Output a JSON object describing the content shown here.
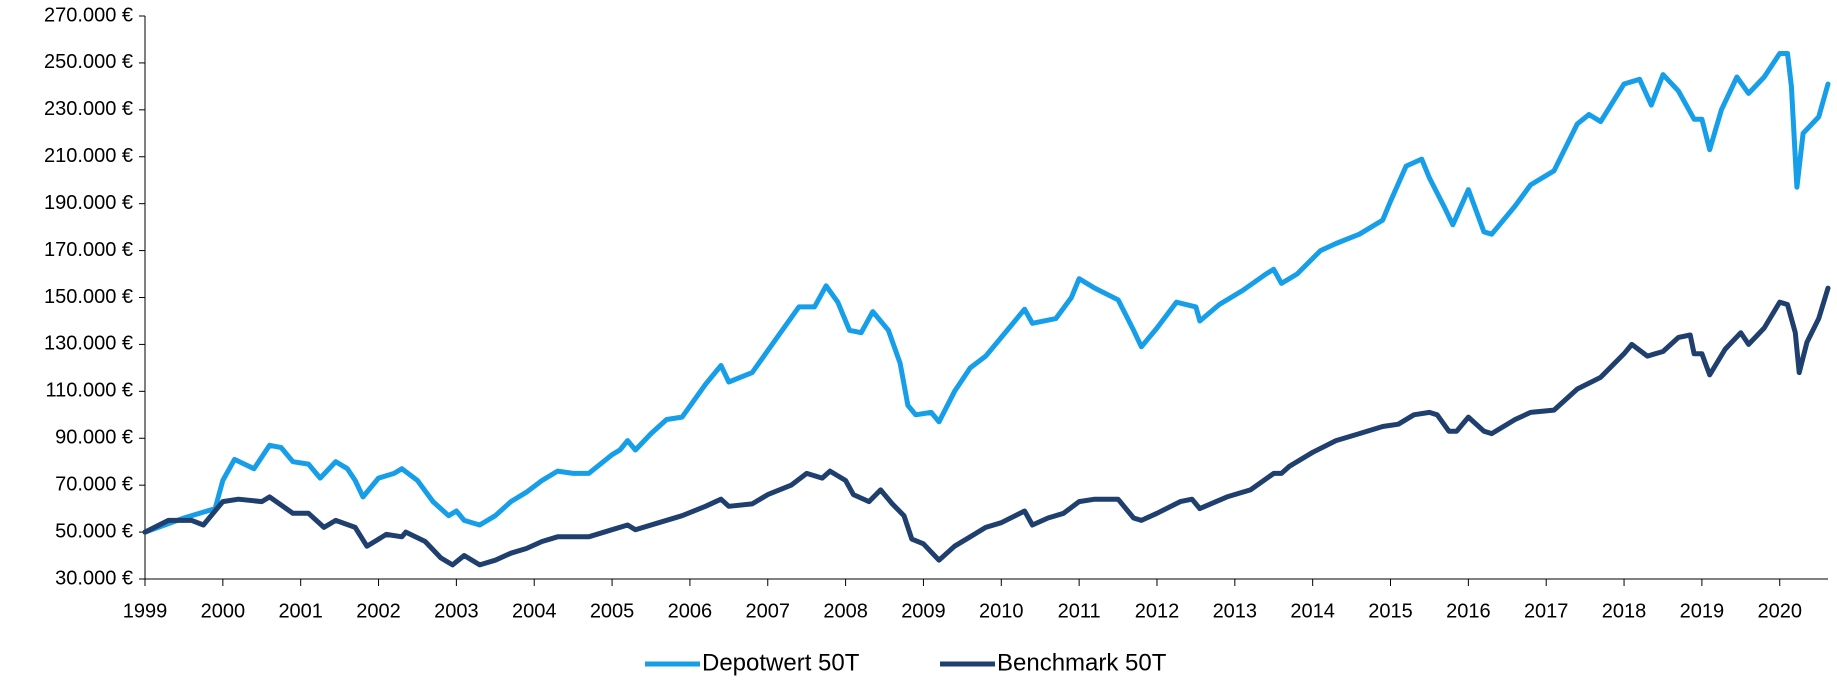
{
  "chart_data": {
    "type": "line",
    "xlim": [
      1999,
      2020.62
    ],
    "xticks": [
      1999,
      2000,
      2001,
      2002,
      2003,
      2004,
      2005,
      2006,
      2007,
      2008,
      2009,
      2010,
      2011,
      2012,
      2013,
      2014,
      2015,
      2016,
      2017,
      2018,
      2019,
      2020
    ],
    "ylim": [
      30000,
      270000
    ],
    "yticks": [
      {
        "value": 30000,
        "label": "30.000 €"
      },
      {
        "value": 50000,
        "label": "50.000 €"
      },
      {
        "value": 70000,
        "label": "70.000 €"
      },
      {
        "value": 90000,
        "label": "90.000 €"
      },
      {
        "value": 110000,
        "label": "110.000 €"
      },
      {
        "value": 130000,
        "label": "130.000 €"
      },
      {
        "value": 150000,
        "label": "150.000 €"
      },
      {
        "value": 170000,
        "label": "170.000 €"
      },
      {
        "value": 190000,
        "label": "190.000 €"
      },
      {
        "value": 210000,
        "label": "210.000 €"
      },
      {
        "value": 230000,
        "label": "230.000 €"
      },
      {
        "value": 250000,
        "label": "250.000 €"
      },
      {
        "value": 270000,
        "label": "270.000 €"
      }
    ],
    "grid": false,
    "legend": "bottom",
    "series": [
      {
        "name": "Depotwert 50T",
        "color": "#179ee9",
        "x": [
          1999.0,
          1999.5,
          1999.9,
          2000.0,
          2000.15,
          2000.4,
          2000.6,
          2000.75,
          2000.9,
          2001.1,
          2001.25,
          2001.45,
          2001.6,
          2001.7,
          2001.8,
          2002.0,
          2002.2,
          2002.3,
          2002.5,
          2002.7,
          2002.9,
          2003.0,
          2003.1,
          2003.3,
          2003.5,
          2003.7,
          2003.9,
          2004.1,
          2004.3,
          2004.5,
          2004.7,
          2005.0,
          2005.1,
          2005.2,
          2005.3,
          2005.5,
          2005.7,
          2005.9,
          2006.2,
          2006.4,
          2006.5,
          2006.8,
          2007.1,
          2007.4,
          2007.6,
          2007.75,
          2007.9,
          2008.05,
          2008.2,
          2008.35,
          2008.55,
          2008.7,
          2008.8,
          2008.9,
          2009.1,
          2009.2,
          2009.4,
          2009.6,
          2009.8,
          2010.0,
          2010.3,
          2010.4,
          2010.7,
          2010.9,
          2011.0,
          2011.2,
          2011.5,
          2011.7,
          2011.8,
          2012.0,
          2012.25,
          2012.5,
          2012.55,
          2012.8,
          2013.1,
          2013.4,
          2013.5,
          2013.6,
          2013.8,
          2014.1,
          2014.3,
          2014.6,
          2014.9,
          2015.0,
          2015.2,
          2015.4,
          2015.5,
          2015.7,
          2015.8,
          2016.0,
          2016.2,
          2016.3,
          2016.6,
          2016.8,
          2017.1,
          2017.4,
          2017.55,
          2017.7,
          2018.0,
          2018.2,
          2018.35,
          2018.5,
          2018.7,
          2018.9,
          2019.0,
          2019.1,
          2019.25,
          2019.45,
          2019.6,
          2019.8,
          2020.0,
          2020.1,
          2020.15,
          2020.22,
          2020.3,
          2020.5,
          2020.62
        ],
        "values": [
          50000,
          56000,
          60000,
          72000,
          81000,
          77000,
          87000,
          86000,
          80000,
          79000,
          73000,
          80000,
          77000,
          72000,
          65000,
          73000,
          75000,
          77000,
          72000,
          63000,
          57000,
          59000,
          55000,
          53000,
          57000,
          63000,
          67000,
          72000,
          76000,
          75000,
          75000,
          83000,
          85000,
          89000,
          85000,
          92000,
          98000,
          99000,
          113000,
          121000,
          114000,
          118000,
          132000,
          146000,
          146000,
          155000,
          148000,
          136000,
          135000,
          144000,
          136000,
          122000,
          104000,
          100000,
          101000,
          97000,
          110000,
          120000,
          125000,
          133000,
          145000,
          139000,
          141000,
          150000,
          158000,
          154000,
          149000,
          136000,
          129000,
          137000,
          148000,
          146000,
          140000,
          147000,
          153000,
          160000,
          162000,
          156000,
          160000,
          170000,
          173000,
          177000,
          183000,
          191000,
          206000,
          209000,
          201000,
          188000,
          181000,
          196000,
          178000,
          177000,
          189000,
          198000,
          204000,
          224000,
          228000,
          225000,
          241000,
          243000,
          232000,
          245000,
          238000,
          226000,
          226000,
          213000,
          230000,
          244000,
          237000,
          244000,
          254000,
          254000,
          240000,
          197000,
          220000,
          227000,
          241000
        ]
      },
      {
        "name": "Benchmark 50T",
        "color": "#1f3f6e",
        "x": [
          1999.0,
          1999.3,
          1999.6,
          1999.75,
          2000.0,
          2000.2,
          2000.5,
          2000.6,
          2000.9,
          2001.1,
          2001.3,
          2001.45,
          2001.7,
          2001.85,
          2002.1,
          2002.3,
          2002.35,
          2002.6,
          2002.8,
          2002.95,
          2003.1,
          2003.3,
          2003.5,
          2003.7,
          2003.9,
          2004.1,
          2004.3,
          2004.7,
          2005.0,
          2005.2,
          2005.3,
          2005.6,
          2005.9,
          2006.2,
          2006.4,
          2006.5,
          2006.8,
          2007.0,
          2007.3,
          2007.5,
          2007.7,
          2007.8,
          2008.0,
          2008.1,
          2008.3,
          2008.45,
          2008.6,
          2008.75,
          2008.85,
          2009.0,
          2009.2,
          2009.4,
          2009.6,
          2009.8,
          2010.0,
          2010.3,
          2010.4,
          2010.6,
          2010.8,
          2011.0,
          2011.2,
          2011.5,
          2011.7,
          2011.8,
          2012.0,
          2012.3,
          2012.45,
          2012.55,
          2012.9,
          2013.2,
          2013.5,
          2013.6,
          2013.7,
          2014.0,
          2014.3,
          2014.6,
          2014.9,
          2015.1,
          2015.3,
          2015.5,
          2015.6,
          2015.75,
          2015.85,
          2016.0,
          2016.2,
          2016.3,
          2016.6,
          2016.8,
          2017.1,
          2017.4,
          2017.7,
          2018.0,
          2018.1,
          2018.3,
          2018.5,
          2018.7,
          2018.85,
          2018.9,
          2019.0,
          2019.1,
          2019.3,
          2019.5,
          2019.6,
          2019.8,
          2020.0,
          2020.1,
          2020.2,
          2020.25,
          2020.35,
          2020.5,
          2020.62
        ],
        "values": [
          50000,
          55000,
          55000,
          53000,
          63000,
          64000,
          63000,
          65000,
          58000,
          58000,
          52000,
          55000,
          52000,
          44000,
          49000,
          48000,
          50000,
          46000,
          39000,
          36000,
          40000,
          36000,
          38000,
          41000,
          43000,
          46000,
          48000,
          48000,
          51000,
          53000,
          51000,
          54000,
          57000,
          61000,
          64000,
          61000,
          62000,
          66000,
          70000,
          75000,
          73000,
          76000,
          72000,
          66000,
          63000,
          68000,
          62000,
          57000,
          47000,
          45000,
          38000,
          44000,
          48000,
          52000,
          54000,
          59000,
          53000,
          56000,
          58000,
          63000,
          64000,
          64000,
          56000,
          55000,
          58000,
          63000,
          64000,
          60000,
          65000,
          68000,
          75000,
          75000,
          78000,
          84000,
          89000,
          92000,
          95000,
          96000,
          100000,
          101000,
          100000,
          93000,
          93000,
          99000,
          93000,
          92000,
          98000,
          101000,
          102000,
          111000,
          116000,
          126000,
          130000,
          125000,
          127000,
          133000,
          134000,
          126000,
          126000,
          117000,
          128000,
          135000,
          130000,
          137000,
          148000,
          147000,
          135000,
          118000,
          131000,
          141000,
          154000
        ]
      }
    ]
  }
}
